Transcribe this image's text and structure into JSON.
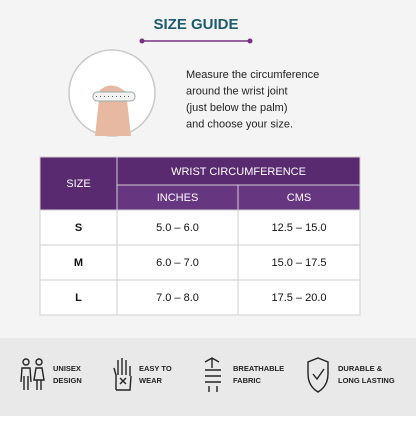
{
  "header": {
    "title": "SIZE GUIDE"
  },
  "instructions": [
    "Measure the circumference",
    "around the wrist joint",
    "(just below the palm)",
    "and choose your size."
  ],
  "table": {
    "size_header": "SIZE",
    "group_header": "WRIST CIRCUMFERENCE",
    "sub_headers": [
      "INCHES",
      "CMS"
    ],
    "rows": [
      [
        "S",
        "5.0 – 6.0",
        "12.5 – 15.0"
      ],
      [
        "M",
        "6.0 – 7.0",
        "15.0 – 17.5"
      ],
      [
        "L",
        "7.0 – 8.0",
        "17.5 – 20.0"
      ]
    ]
  },
  "features": [
    [
      "UNISEX",
      "DESIGN"
    ],
    [
      "EASY TO",
      "WEAR"
    ],
    [
      "BREATHABLE",
      "FABRIC"
    ],
    [
      "DURABLE &",
      "LONG LASTING"
    ]
  ]
}
